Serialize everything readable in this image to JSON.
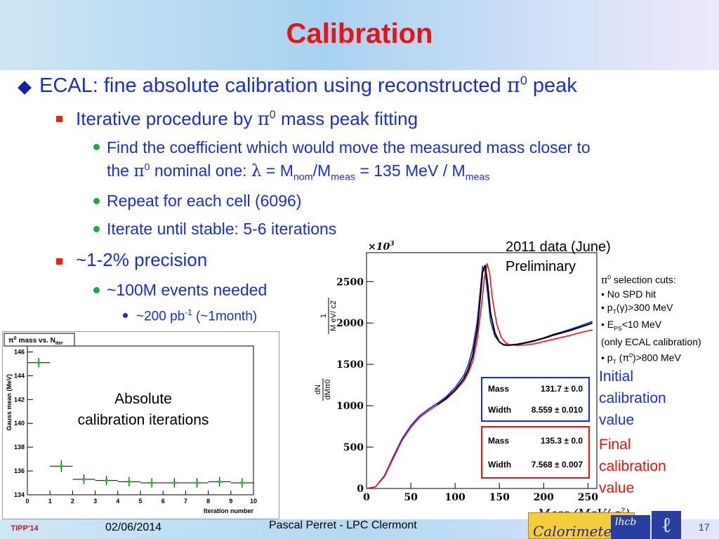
{
  "slide": {
    "title": "Calibration",
    "bullets": {
      "ecal": {
        "text": "ECAL: fine absolute calibration using reconstructed",
        "pi": "π",
        "sup": "0",
        "tail": "peak"
      },
      "iterative": {
        "text": "Iterative procedure by",
        "pi": "π",
        "sup": "0",
        "tail": "mass peak fitting"
      },
      "find_line1": "Find the coefficient which would move the measured mass closer to",
      "find_line2": {
        "a": "the",
        "pi": "π",
        "sup": "0",
        "b": "nominal one:",
        "lambda": "λ",
        "c": "= M",
        "sub_nom": "nom",
        "d": "/M",
        "sub_meas": "meas",
        "e": "= 135 MeV / M",
        "sub_meas2": "meas"
      },
      "repeat": "Repeat for each cell (6096)",
      "iterate": "Iterate until stable: 5-6 iterations",
      "precision": "~1-2% precision",
      "events": "~100M events needed",
      "lumi": {
        "a": "~200 pb",
        "sup": "-1",
        "b": "(~1month)"
      }
    }
  },
  "left_chart": {
    "title_pi": "π",
    "title_sup": "0",
    "title_a": "mass vs. N",
    "title_sub": "iter",
    "overlay_line1": "Absolute",
    "overlay_line2": "calibration iterations"
  },
  "right_chart": {
    "data_label_line1": "2011 data (June)",
    "data_label_line2": "Preliminary",
    "xlabel": "Mass (MeV/ c",
    "xlabel_sup": "2",
    "xlabel_close": ")",
    "ylabel_top": "1",
    "ylabel_unit": "M eV/ c",
    "ylabel_frac_top": "dN",
    "ylabel_frac_bot": "dM",
    "ylabel_frac_sub": "π0",
    "exponent": "×10",
    "exponent_sup": "3",
    "fit_initial": {
      "mass_label": "Mass",
      "mass_value": "131.7 ± 0.0",
      "width_label": "Width",
      "width_value": "8.559 ± 0.010"
    },
    "fit_final": {
      "mass_label": "Mass",
      "mass_value": "135.3 ± 0.0",
      "width_label": "Width",
      "width_value": "7.568 ± 0.007"
    }
  },
  "cuts": {
    "header_pi": "π",
    "header_sup": "0",
    "header": "selection cuts:",
    "c1": "• No SPD hit",
    "c2_a": "• p",
    "c2_sub": "T",
    "c2_b": "(γ)>300 MeV",
    "c3_a": "• E",
    "c3_sub": "PS",
    "c3_b": "<10 MeV",
    "c4": "(only ECAL calibration)",
    "c5_a": "• p",
    "c5_sub": "T",
    "c5_b": "(π",
    "c5_sup": "0",
    "c5_c": ")>800 MeV"
  },
  "calibration_labels": {
    "initial": [
      "Initial",
      "calibration",
      "value"
    ],
    "final": [
      "Final",
      "calibration",
      "value"
    ]
  },
  "footer": {
    "date": "02/06/2014",
    "author": "Pascal Perret - LPC Clermont",
    "page": "17",
    "tipp": "TIPP'14",
    "calorimeters": "Calorimeters",
    "lhcb": "lhcb"
  },
  "chart_data": [
    {
      "type": "scatter",
      "title": "π0 mass vs. Niter",
      "xlabel": "Iteration number",
      "ylabel": "Gauss mean (MeV)",
      "xlim": [
        0,
        10
      ],
      "ylim": [
        134,
        146.5
      ],
      "x_ticks": [
        "0",
        "1",
        "2",
        "3",
        "4",
        "5",
        "6",
        "7",
        "8",
        "9",
        "10"
      ],
      "y_ticks": [
        "134",
        "136",
        "138",
        "140",
        "142",
        "144",
        "146"
      ],
      "color": "#22cc22",
      "points": [
        {
          "x": 0.5,
          "y": 145.1,
          "xerr": 0.5,
          "yerr": 0.4
        },
        {
          "x": 1.5,
          "y": 136.4,
          "xerr": 0.5,
          "yerr": 0.5
        },
        {
          "x": 2.5,
          "y": 135.3,
          "xerr": 0.5,
          "yerr": 0.4
        },
        {
          "x": 3.5,
          "y": 135.2,
          "xerr": 0.5,
          "yerr": 0.4
        },
        {
          "x": 4.5,
          "y": 135.1,
          "xerr": 0.5,
          "yerr": 0.4
        },
        {
          "x": 5.5,
          "y": 135.0,
          "xerr": 0.5,
          "yerr": 0.4
        },
        {
          "x": 6.5,
          "y": 135.0,
          "xerr": 0.5,
          "yerr": 0.4
        },
        {
          "x": 7.5,
          "y": 135.0,
          "xerr": 0.5,
          "yerr": 0.4
        },
        {
          "x": 8.5,
          "y": 135.1,
          "xerr": 0.5,
          "yerr": 0.4
        },
        {
          "x": 9.5,
          "y": 135.0,
          "xerr": 0.5,
          "yerr": 0.4
        }
      ]
    },
    {
      "type": "line",
      "title": "",
      "xlabel": "Mass (MeV/ c2)",
      "ylabel": "dN/dMπ0 [1/MeV/c2]",
      "xlim": [
        0,
        260
      ],
      "ylim": [
        0,
        2850
      ],
      "x_ticks": [
        "0",
        "50",
        "100",
        "150",
        "200",
        "250"
      ],
      "y_ticks": [
        "0",
        "500",
        "1000",
        "1500",
        "2000",
        "2500"
      ],
      "y_multiplier": "×10^3",
      "series": [
        {
          "color": "#1a2fd0",
          "x": [
            0,
            10,
            20,
            30,
            40,
            50,
            60,
            70,
            80,
            90,
            100,
            110,
            115,
            120,
            125,
            128,
            131,
            134,
            137,
            140,
            145,
            150,
            155,
            160,
            170,
            180,
            190,
            200,
            210,
            220,
            230,
            240,
            250,
            255
          ],
          "y": [
            0,
            20,
            150,
            380,
            600,
            760,
            880,
            960,
            1030,
            1110,
            1220,
            1370,
            1500,
            1700,
            2020,
            2350,
            2680,
            2620,
            2330,
            2020,
            1840,
            1770,
            1740,
            1735,
            1745,
            1765,
            1790,
            1820,
            1860,
            1890,
            1925,
            1960,
            2000,
            2020
          ]
        },
        {
          "color": "#ee1111",
          "x": [
            0,
            10,
            20,
            30,
            40,
            50,
            60,
            70,
            80,
            90,
            100,
            110,
            115,
            120,
            125,
            130,
            133,
            136,
            139,
            142,
            147,
            152,
            157,
            162,
            170,
            180,
            190,
            200,
            210,
            220,
            230,
            240,
            250,
            255
          ],
          "y": [
            0,
            20,
            140,
            360,
            580,
            740,
            860,
            940,
            1010,
            1080,
            1180,
            1300,
            1400,
            1540,
            1800,
            2230,
            2540,
            2720,
            2600,
            2300,
            1990,
            1830,
            1760,
            1735,
            1730,
            1735,
            1750,
            1775,
            1800,
            1825,
            1850,
            1880,
            1905,
            1915
          ]
        },
        {
          "color": "#000000",
          "x": [
            80,
            90,
            100,
            110,
            115,
            120,
            125,
            128,
            131,
            134,
            137,
            140,
            145,
            150,
            155,
            160,
            170,
            180,
            190,
            200,
            210,
            220,
            230,
            240,
            250,
            255
          ],
          "y": [
            1010,
            1090,
            1190,
            1330,
            1440,
            1610,
            1920,
            2260,
            2610,
            2700,
            2450,
            2120,
            1880,
            1770,
            1735,
            1730,
            1740,
            1760,
            1785,
            1815,
            1850,
            1880,
            1910,
            1945,
            1980,
            2000
          ]
        }
      ]
    }
  ]
}
